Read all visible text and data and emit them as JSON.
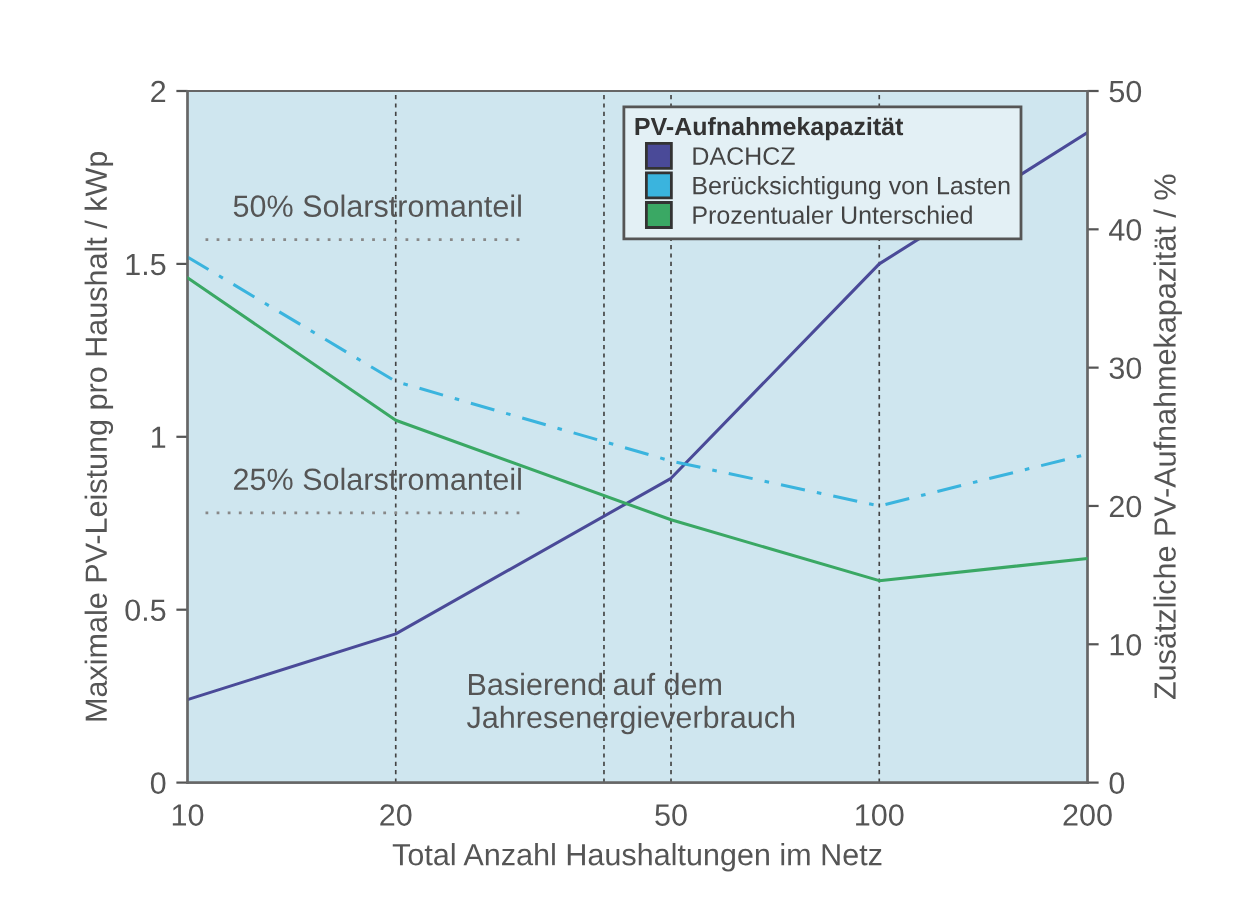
{
  "chart_data": {
    "type": "line",
    "xlabel": "Total Anzahl Haushaltungen im Netz",
    "ylabel": "Maximale PV-Leistung pro Haushalt / kWp",
    "y2label": "Zusätzliche PV-Aufnahmekapazität / %",
    "legend_title": "PV-Aufnahmekapazität",
    "x": [
      10,
      20,
      50,
      100,
      200
    ],
    "series": [
      {
        "name": "DACHCZ",
        "color": "#4a4a98",
        "values": [
          0.24,
          0.43,
          0.88,
          1.5,
          1.88
        ]
      },
      {
        "name": "Berücksichtigung von Lasten",
        "color": "#3ab4de",
        "values": [
          1.52,
          1.16,
          0.93,
          0.8,
          0.95
        ],
        "line_style": "dashdot"
      },
      {
        "name": "Prozentualer Unterschied",
        "color": "#3aa864",
        "values": [
          36.5,
          26.2,
          19,
          14.6,
          16.2
        ],
        "axis": "y2"
      }
    ],
    "log": "x",
    "xlim": [
      10,
      200
    ],
    "xticks": [
      10,
      20,
      50,
      100,
      200
    ],
    "ylim": [
      0,
      2
    ],
    "yticks": [
      0,
      0.5,
      1,
      1.5,
      2
    ],
    "y2lim": [
      0,
      50
    ],
    "y2ticks": [
      0,
      10,
      20,
      30,
      40,
      50
    ],
    "ref_lines": [
      {
        "axis": "x",
        "value": 20,
        "label": null,
        "line_style": "dashed"
      },
      {
        "axis": "x",
        "value": 40,
        "label": null,
        "line_style": "dashed"
      },
      {
        "axis": "x",
        "value": 50,
        "label": null,
        "line_style": "dashed"
      },
      {
        "axis": "x",
        "value": 100,
        "label": null,
        "line_style": "dashed"
      },
      {
        "axis": "y",
        "value": 1.57,
        "label": "50% Solarstromanteil",
        "line_style": "dotted"
      },
      {
        "axis": "y",
        "value": 0.78,
        "label": "25% Solarstromanteil",
        "line_style": "dotted"
      }
    ],
    "annotations": [
      "Basierend auf dem\nJahresenergieverbrauch"
    ],
    "legend": "top right",
    "grid": false
  }
}
